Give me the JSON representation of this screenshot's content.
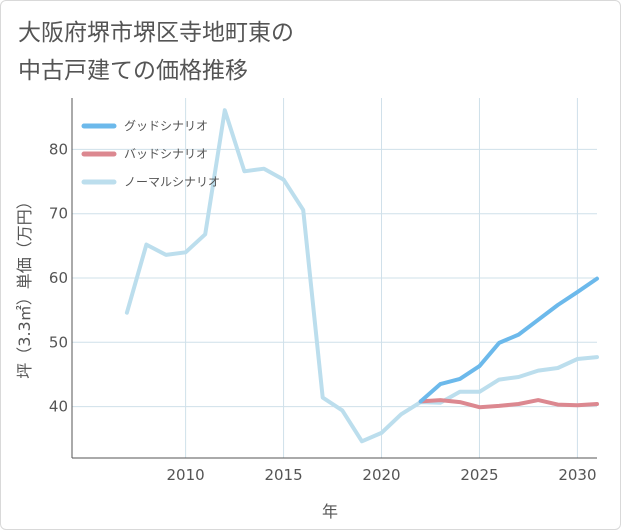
{
  "chart_data": {
    "type": "line",
    "title_line1": "大阪府堺市堺区寺地町東の",
    "title_line2": "中古戸建ての価格推移",
    "xlabel": "年",
    "ylabel": "坪（3.3㎡）単価（万円）",
    "xlim": [
      2004.2,
      2031
    ],
    "ylim": [
      32,
      88
    ],
    "x_ticks": [
      "2010",
      "2015",
      "2020",
      "2025",
      "2030"
    ],
    "y_ticks": [
      "40",
      "50",
      "60",
      "70",
      "80"
    ],
    "grid": true,
    "legend_position": "top-left",
    "colors": {
      "good": "#6cb9eb",
      "bad": "#dc8890",
      "normal": "#bcdeed",
      "grid": "#cfe0ea",
      "axis": "#555555"
    },
    "series": [
      {
        "name": "グッドシナリオ",
        "key": "good",
        "x": [
          2022,
          2023,
          2024,
          2025,
          2026,
          2027,
          2028,
          2029,
          2030,
          2031
        ],
        "y": [
          40.8,
          43.5,
          44.3,
          46.3,
          49.9,
          51.2,
          53.5,
          55.8,
          57.8,
          59.9
        ]
      },
      {
        "name": "バッドシナリオ",
        "key": "bad",
        "x": [
          2022,
          2023,
          2024,
          2025,
          2026,
          2027,
          2028,
          2029,
          2030,
          2031
        ],
        "y": [
          40.8,
          41.0,
          40.7,
          39.9,
          40.1,
          40.4,
          41.0,
          40.3,
          40.2,
          40.4
        ]
      },
      {
        "name": "ノーマルシナリオ",
        "key": "normal",
        "x": [
          2007,
          2008,
          2009,
          2010,
          2011,
          2012,
          2013,
          2014,
          2015,
          2016,
          2017,
          2018,
          2019,
          2020,
          2021,
          2022,
          2023,
          2024,
          2025,
          2026,
          2027,
          2028,
          2029,
          2030,
          2031
        ],
        "y": [
          54.6,
          65.2,
          63.6,
          64.0,
          66.8,
          86.1,
          76.6,
          77.0,
          75.3,
          70.6,
          41.4,
          39.4,
          34.6,
          35.9,
          38.8,
          40.7,
          40.6,
          42.3,
          42.3,
          44.2,
          44.6,
          45.6,
          46.0,
          47.4,
          47.7
        ]
      }
    ]
  }
}
